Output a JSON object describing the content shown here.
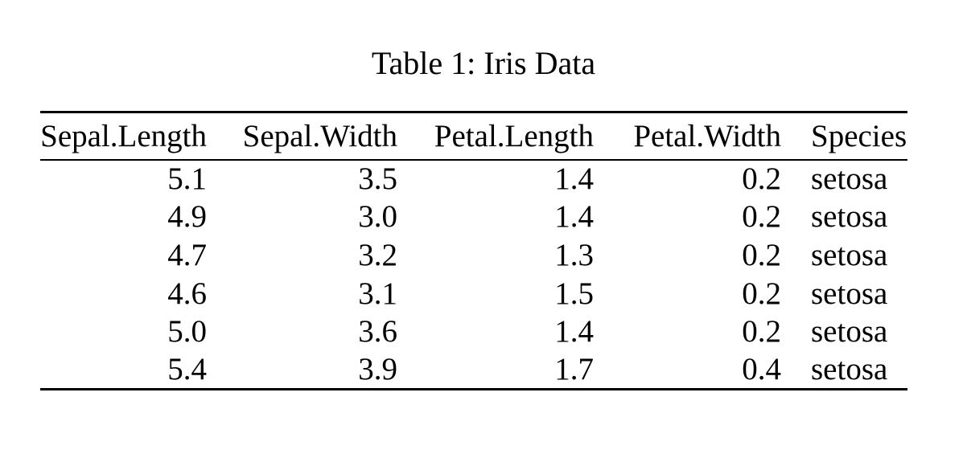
{
  "caption": "Table 1: Iris Data",
  "table": {
    "columns": [
      {
        "label": "Sepal.Length",
        "align": "right"
      },
      {
        "label": "Sepal.Width",
        "align": "right"
      },
      {
        "label": "Petal.Length",
        "align": "right"
      },
      {
        "label": "Petal.Width",
        "align": "right"
      },
      {
        "label": "Species",
        "align": "left"
      }
    ],
    "rows": [
      [
        "5.1",
        "3.5",
        "1.4",
        "0.2",
        "setosa"
      ],
      [
        "4.9",
        "3.0",
        "1.4",
        "0.2",
        "setosa"
      ],
      [
        "4.7",
        "3.2",
        "1.3",
        "0.2",
        "setosa"
      ],
      [
        "4.6",
        "3.1",
        "1.5",
        "0.2",
        "setosa"
      ],
      [
        "5.0",
        "3.6",
        "1.4",
        "0.2",
        "setosa"
      ],
      [
        "5.4",
        "3.9",
        "1.7",
        "0.4",
        "setosa"
      ]
    ]
  },
  "colors": {
    "text": "#000000",
    "background": "#ffffff",
    "rule": "#000000"
  }
}
